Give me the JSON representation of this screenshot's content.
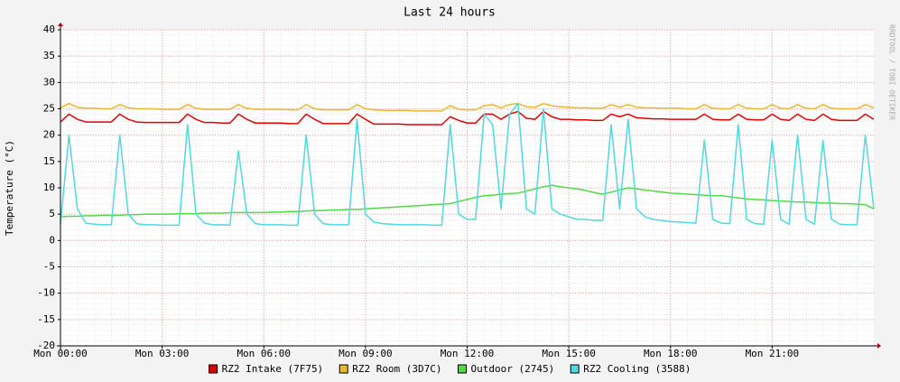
{
  "chart_data": {
    "type": "line",
    "title": "Last 24 hours",
    "y_label": "Temperature (°C)",
    "side_text": "RRDTOOL / TOBI OETIKER",
    "grid": true,
    "legend": "bottom",
    "xlim": [
      0,
      24
    ],
    "xticks": [
      {
        "value": 0,
        "label": "Mon 00:00"
      },
      {
        "value": 3,
        "label": "Mon 03:00"
      },
      {
        "value": 6,
        "label": "Mon 06:00"
      },
      {
        "value": 9,
        "label": "Mon 09:00"
      },
      {
        "value": 12,
        "label": "Mon 12:00"
      },
      {
        "value": 15,
        "label": "Mon 15:00"
      },
      {
        "value": 18,
        "label": "Mon 18:00"
      },
      {
        "value": 21,
        "label": "Mon 21:00"
      }
    ],
    "ylim": [
      -20,
      40
    ],
    "yticks": [
      -20,
      -15,
      -10,
      -5,
      0,
      5,
      10,
      15,
      20,
      25,
      30,
      35,
      40
    ],
    "x": [
      0,
      0.25,
      0.5,
      0.75,
      1,
      1.25,
      1.5,
      1.75,
      2,
      2.25,
      2.5,
      2.75,
      3,
      3.25,
      3.5,
      3.75,
      4,
      4.25,
      4.5,
      4.75,
      5,
      5.25,
      5.5,
      5.75,
      6,
      6.25,
      6.5,
      6.75,
      7,
      7.25,
      7.5,
      7.75,
      8,
      8.25,
      8.5,
      8.75,
      9,
      9.25,
      9.5,
      9.75,
      10,
      10.25,
      10.5,
      10.75,
      11,
      11.25,
      11.5,
      11.75,
      12,
      12.25,
      12.5,
      12.75,
      13,
      13.25,
      13.5,
      13.75,
      14,
      14.25,
      14.5,
      14.75,
      15,
      15.25,
      15.5,
      15.75,
      16,
      16.25,
      16.5,
      16.75,
      17,
      17.25,
      17.5,
      17.75,
      18,
      18.25,
      18.5,
      18.75,
      19,
      19.25,
      19.5,
      19.75,
      20,
      20.25,
      20.5,
      20.75,
      21,
      21.25,
      21.5,
      21.75,
      22,
      22.25,
      22.5,
      22.75,
      23,
      23.25,
      23.5,
      23.75,
      24
    ],
    "series": [
      {
        "name": "RZ2 Intake (7F75)",
        "color": "#e00000",
        "values": [
          22.5,
          24,
          23,
          22.5,
          22.5,
          22.5,
          22.5,
          24,
          23,
          22.5,
          22.4,
          22.4,
          22.4,
          22.4,
          22.4,
          24,
          23,
          22.4,
          22.4,
          22.3,
          22.3,
          24,
          23,
          22.3,
          22.3,
          22.3,
          22.3,
          22.2,
          22.2,
          24,
          23,
          22.2,
          22.2,
          22.2,
          22.2,
          24,
          23,
          22.1,
          22.1,
          22.1,
          22.1,
          22,
          22,
          22,
          22,
          22,
          23.5,
          22.8,
          22.3,
          22.3,
          24,
          24,
          23,
          24,
          24.5,
          23.2,
          23,
          24.5,
          23.5,
          23,
          23,
          22.9,
          22.9,
          22.8,
          22.8,
          24,
          23.5,
          24,
          23.3,
          23.2,
          23.1,
          23.1,
          23,
          23,
          23,
          23,
          24,
          23,
          22.9,
          22.9,
          24,
          23,
          22.9,
          22.9,
          24,
          23,
          22.8,
          24,
          23,
          22.8,
          24,
          23,
          22.8,
          22.8,
          22.8,
          24,
          23
        ]
      },
      {
        "name": "RZ2 Room (3D7C)",
        "color": "#e8b830",
        "values": [
          25.2,
          26,
          25.3,
          25.1,
          25.1,
          25,
          25,
          25.8,
          25.2,
          25,
          25,
          25,
          24.9,
          24.9,
          24.9,
          25.8,
          25.1,
          24.9,
          24.9,
          24.9,
          24.9,
          25.8,
          25.1,
          24.9,
          24.9,
          24.9,
          24.9,
          24.8,
          24.8,
          25.8,
          25,
          24.8,
          24.8,
          24.8,
          24.8,
          25.8,
          25,
          24.8,
          24.7,
          24.7,
          24.7,
          24.7,
          24.6,
          24.6,
          24.6,
          24.6,
          25.6,
          24.9,
          24.8,
          24.8,
          25.6,
          25.8,
          25.2,
          25.8,
          26,
          25.4,
          25.3,
          26,
          25.6,
          25.4,
          25.3,
          25.2,
          25.2,
          25.1,
          25.1,
          25.8,
          25.3,
          25.8,
          25.3,
          25.2,
          25.2,
          25.1,
          25.1,
          25.1,
          25,
          25,
          25.8,
          25.1,
          25,
          25,
          25.8,
          25.1,
          25,
          25,
          25.8,
          25.1,
          25,
          25.8,
          25.1,
          25,
          25.8,
          25.1,
          25,
          25,
          25,
          25.8,
          25.2
        ]
      },
      {
        "name": "Outdoor (2745)",
        "color": "#54d848",
        "values": [
          4.5,
          4.6,
          4.6,
          4.7,
          4.7,
          4.8,
          4.8,
          4.8,
          4.9,
          4.9,
          5,
          5,
          5,
          5,
          5.1,
          5.1,
          5.1,
          5.2,
          5.2,
          5.2,
          5.3,
          5.3,
          5.3,
          5.3,
          5.3,
          5.4,
          5.4,
          5.5,
          5.5,
          5.6,
          5.7,
          5.7,
          5.8,
          5.8,
          5.9,
          5.9,
          6,
          6.1,
          6.2,
          6.3,
          6.4,
          6.5,
          6.6,
          6.7,
          6.8,
          6.9,
          7,
          7.4,
          7.8,
          8.2,
          8.5,
          8.6,
          8.8,
          8.9,
          9,
          9.4,
          9.8,
          10.2,
          10.5,
          10.2,
          10,
          9.8,
          9.5,
          9.1,
          8.8,
          9.2,
          9.6,
          10,
          9.8,
          9.6,
          9.4,
          9.2,
          9,
          8.9,
          8.8,
          8.7,
          8.6,
          8.5,
          8.5,
          8.3,
          8.1,
          7.9,
          7.8,
          7.7,
          7.6,
          7.5,
          7.4,
          7.3,
          7.3,
          7.2,
          7.1,
          7.1,
          7,
          7,
          6.9,
          6.8,
          6
        ]
      },
      {
        "name": "RZ2 Cooling (3588)",
        "color": "#50d8e0",
        "values": [
          3.2,
          20,
          6,
          3.3,
          3.1,
          3,
          3,
          20,
          5,
          3.2,
          3,
          3,
          2.9,
          2.9,
          2.9,
          22,
          5,
          3.3,
          3,
          3,
          2.9,
          17,
          5,
          3.2,
          3,
          3,
          3,
          2.9,
          2.9,
          20,
          5,
          3.2,
          3,
          3,
          3,
          23,
          5,
          3.5,
          3.2,
          3.1,
          3,
          3,
          3,
          3,
          2.9,
          2.9,
          22,
          5,
          4,
          4,
          24,
          22,
          6,
          24,
          26,
          6,
          5,
          25,
          6,
          5,
          4.5,
          4,
          4,
          3.8,
          3.8,
          22,
          6,
          23,
          6,
          4.5,
          4,
          3.8,
          3.6,
          3.5,
          3.4,
          3.3,
          19,
          4,
          3.3,
          3.2,
          22,
          4,
          3.2,
          3.1,
          19,
          4,
          3.1,
          20,
          4,
          3.1,
          19,
          4,
          3.1,
          3,
          3,
          20,
          6
        ]
      }
    ]
  }
}
